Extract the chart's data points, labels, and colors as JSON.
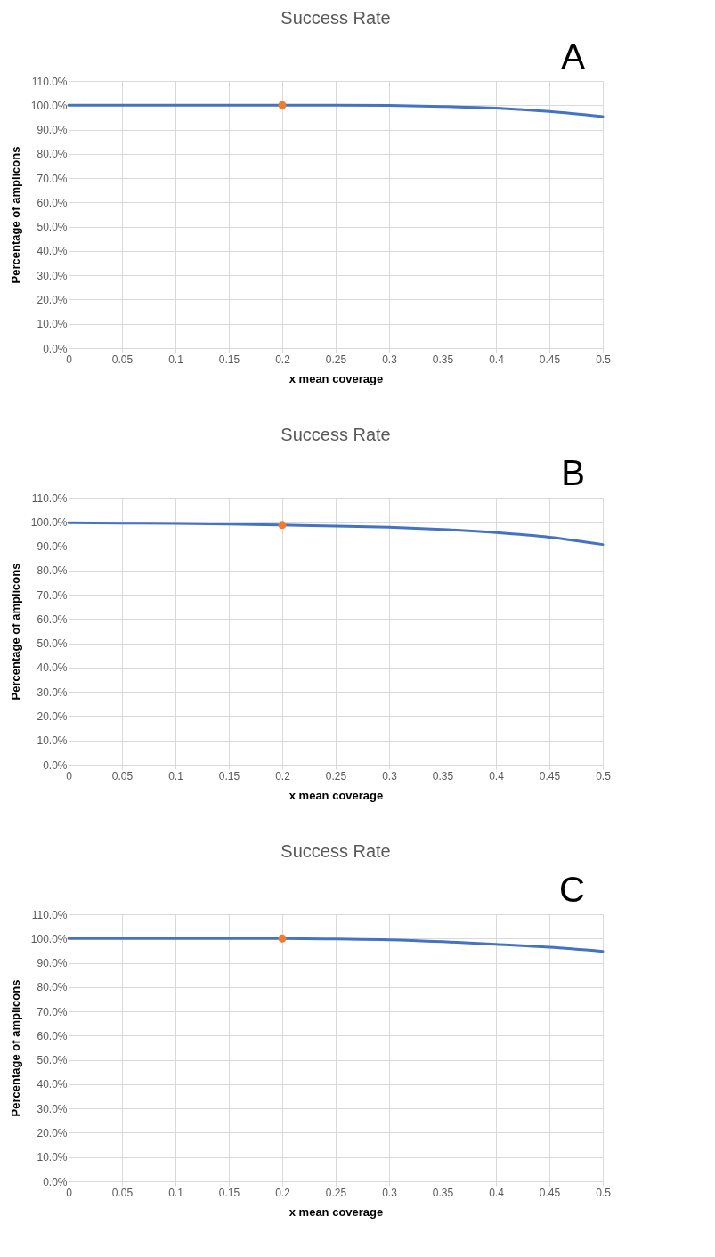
{
  "chart_data": [
    {
      "type": "line",
      "title": "Success Rate",
      "xlabel": "x mean coverage",
      "ylabel": "Percentage of amplicons",
      "annotations": [
        "A"
      ],
      "grid": true,
      "marker": "none",
      "line_style": "solid",
      "x": [
        0,
        0.05,
        0.1,
        0.15,
        0.2,
        0.25,
        0.3,
        0.35,
        0.4,
        0.45,
        0.5
      ],
      "xlim": [
        0,
        0.5
      ],
      "xticks": [
        0,
        0.05,
        0.1,
        0.15,
        0.2,
        0.25,
        0.3,
        0.35,
        0.4,
        0.45,
        0.5
      ],
      "ylim": [
        0,
        110
      ],
      "yticks": [
        {
          "value": 0,
          "label": "0.0%"
        },
        {
          "value": 10,
          "label": "10.0%"
        },
        {
          "value": 20,
          "label": "20.0%"
        },
        {
          "value": 30,
          "label": "30.0%"
        },
        {
          "value": 40,
          "label": "40.0%"
        },
        {
          "value": 50,
          "label": "50.0%"
        },
        {
          "value": 60,
          "label": "60.0%"
        },
        {
          "value": 70,
          "label": "70.0%"
        },
        {
          "value": 80,
          "label": "80.0%"
        },
        {
          "value": 90,
          "label": "90.0%"
        },
        {
          "value": 100,
          "label": "100.0%"
        },
        {
          "value": 110,
          "label": "110.0%"
        }
      ],
      "series": [
        {
          "color": "#4472c4",
          "values": [
            100,
            100,
            100,
            100,
            100,
            100,
            99.9,
            99.5,
            98.8,
            97.4,
            95.3
          ]
        },
        {
          "type": "scatter",
          "marker": "circle",
          "color": "#ed7d31",
          "values": [
            null,
            null,
            null,
            null,
            100,
            null,
            null,
            null,
            null,
            null,
            null
          ]
        }
      ]
    },
    {
      "type": "line",
      "title": "Success Rate",
      "xlabel": "x mean coverage",
      "ylabel": "Percentage of amplicons",
      "annotations": [
        "B"
      ],
      "grid": true,
      "marker": "none",
      "line_style": "solid",
      "x": [
        0,
        0.05,
        0.1,
        0.15,
        0.2,
        0.25,
        0.3,
        0.35,
        0.4,
        0.45,
        0.5
      ],
      "xlim": [
        0,
        0.5
      ],
      "xticks": [
        0,
        0.05,
        0.1,
        0.15,
        0.2,
        0.25,
        0.3,
        0.35,
        0.4,
        0.45,
        0.5
      ],
      "ylim": [
        0,
        110
      ],
      "yticks": [
        {
          "value": 0,
          "label": "0.0%"
        },
        {
          "value": 10,
          "label": "10.0%"
        },
        {
          "value": 20,
          "label": "20.0%"
        },
        {
          "value": 30,
          "label": "30.0%"
        },
        {
          "value": 40,
          "label": "40.0%"
        },
        {
          "value": 50,
          "label": "50.0%"
        },
        {
          "value": 60,
          "label": "60.0%"
        },
        {
          "value": 70,
          "label": "70.0%"
        },
        {
          "value": 80,
          "label": "80.0%"
        },
        {
          "value": 90,
          "label": "90.0%"
        },
        {
          "value": 100,
          "label": "100.0%"
        },
        {
          "value": 110,
          "label": "110.0%"
        }
      ],
      "series": [
        {
          "color": "#4472c4",
          "values": [
            99.6,
            99.5,
            99.4,
            99.1,
            98.7,
            98.3,
            97.8,
            96.9,
            95.6,
            93.7,
            90.7
          ]
        },
        {
          "type": "scatter",
          "marker": "circle",
          "color": "#ed7d31",
          "values": [
            null,
            null,
            null,
            null,
            98.7,
            null,
            null,
            null,
            null,
            null,
            null
          ]
        }
      ]
    },
    {
      "type": "line",
      "title": "Success Rate",
      "xlabel": "x mean coverage",
      "ylabel": "Percentage of amplicons",
      "annotations": [
        "C"
      ],
      "grid": true,
      "marker": "none",
      "line_style": "solid",
      "x": [
        0,
        0.05,
        0.1,
        0.15,
        0.2,
        0.25,
        0.3,
        0.35,
        0.4,
        0.45,
        0.5
      ],
      "xlim": [
        0,
        0.5
      ],
      "xticks": [
        0,
        0.05,
        0.1,
        0.15,
        0.2,
        0.25,
        0.3,
        0.35,
        0.4,
        0.45,
        0.5
      ],
      "ylim": [
        0,
        110
      ],
      "yticks": [
        {
          "value": 0,
          "label": "0.0%"
        },
        {
          "value": 10,
          "label": "10.0%"
        },
        {
          "value": 20,
          "label": "20.0%"
        },
        {
          "value": 30,
          "label": "30.0%"
        },
        {
          "value": 40,
          "label": "40.0%"
        },
        {
          "value": 50,
          "label": "50.0%"
        },
        {
          "value": 60,
          "label": "60.0%"
        },
        {
          "value": 70,
          "label": "70.0%"
        },
        {
          "value": 80,
          "label": "80.0%"
        },
        {
          "value": 90,
          "label": "90.0%"
        },
        {
          "value": 100,
          "label": "100.0%"
        },
        {
          "value": 110,
          "label": "110.0%"
        }
      ],
      "series": [
        {
          "color": "#4472c4",
          "values": [
            100,
            100,
            100,
            100,
            100,
            99.8,
            99.5,
            98.7,
            97.6,
            96.4,
            94.7
          ]
        },
        {
          "type": "scatter",
          "marker": "circle",
          "color": "#ed7d31",
          "values": [
            null,
            null,
            null,
            null,
            100,
            null,
            null,
            null,
            null,
            null,
            null
          ]
        }
      ]
    }
  ]
}
